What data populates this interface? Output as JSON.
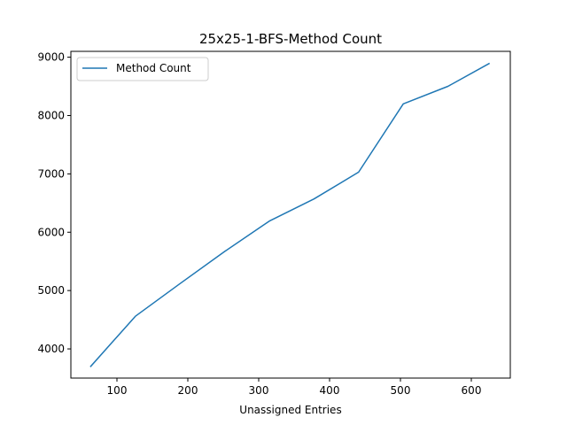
{
  "chart_data": {
    "type": "line",
    "title": "25x25-1-BFS-Method Count",
    "xlabel": "Unassigned Entries",
    "ylabel": "",
    "xlim": [
      35,
      655
    ],
    "ylim": [
      3500,
      9100
    ],
    "xticks": [
      100,
      200,
      300,
      400,
      500,
      600
    ],
    "yticks": [
      4000,
      5000,
      6000,
      7000,
      8000,
      9000
    ],
    "grid": false,
    "legend_position": "upper-left",
    "series": [
      {
        "name": "Method Count",
        "color": "#1f77b4",
        "x": [
          63,
          126,
          189,
          252,
          315,
          378,
          441,
          504,
          567,
          625
        ],
        "y": [
          3700,
          4560,
          5120,
          5670,
          6190,
          6570,
          7030,
          8200,
          8500,
          8890
        ]
      }
    ]
  }
}
